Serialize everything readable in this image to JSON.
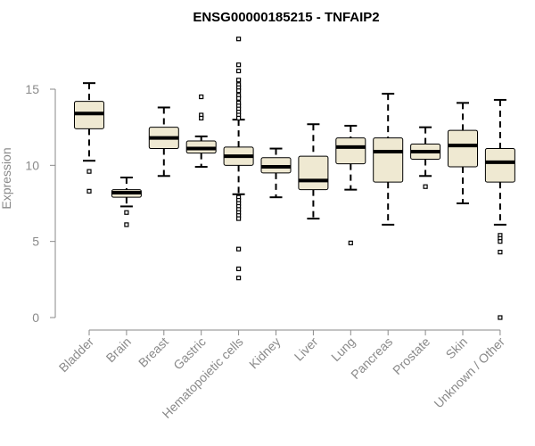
{
  "chart_data": {
    "type": "box",
    "title": "ENSG00000185215 - TNFAIP2",
    "xlabel": "",
    "ylabel": "Expression",
    "ylim": [
      0,
      18.3
    ],
    "yticks": [
      0,
      5,
      10,
      15
    ],
    "box_fill": "#efe9d2",
    "box_stroke": "#000000",
    "median_color": "#000000",
    "categories": [
      "Bladder",
      "Brain",
      "Breast",
      "Gastric",
      "Hematopoietic cells",
      "Kidney",
      "Liver",
      "Lung",
      "Pancreas",
      "Prostate",
      "Skin",
      "Unknown / Other"
    ],
    "boxes": [
      {
        "category": "Bladder",
        "whisker_low": 10.3,
        "q1": 12.4,
        "median": 13.4,
        "q3": 14.2,
        "whisker_high": 15.4,
        "outliers": [
          9.6,
          8.3
        ]
      },
      {
        "category": "Brain",
        "whisker_low": 7.3,
        "q1": 7.9,
        "median": 8.2,
        "q3": 8.4,
        "whisker_high": 9.2,
        "outliers": [
          6.9,
          6.1
        ]
      },
      {
        "category": "Breast",
        "whisker_low": 9.3,
        "q1": 11.1,
        "median": 11.8,
        "q3": 12.5,
        "whisker_high": 13.8,
        "outliers": []
      },
      {
        "category": "Gastric",
        "whisker_low": 9.9,
        "q1": 10.8,
        "median": 11.1,
        "q3": 11.6,
        "whisker_high": 11.9,
        "outliers": [
          14.5,
          13.3,
          13.1
        ]
      },
      {
        "category": "Hematopoietic cells",
        "whisker_low": 8.1,
        "q1": 10.0,
        "median": 10.6,
        "q3": 11.2,
        "whisker_high": 13.0,
        "outliers": [
          18.3,
          16.6,
          16.2,
          15.6,
          15.3,
          15.1,
          14.9,
          14.6,
          14.4,
          14.1,
          13.9,
          13.7,
          13.5,
          13.3,
          13.1,
          7.9,
          7.7,
          7.5,
          7.3,
          7.1,
          6.9,
          6.7,
          6.5,
          4.5,
          3.2,
          2.6
        ]
      },
      {
        "category": "Kidney",
        "whisker_low": 7.9,
        "q1": 9.5,
        "median": 9.9,
        "q3": 10.5,
        "whisker_high": 11.1,
        "outliers": []
      },
      {
        "category": "Liver",
        "whisker_low": 6.5,
        "q1": 8.4,
        "median": 9.0,
        "q3": 10.6,
        "whisker_high": 12.7,
        "outliers": []
      },
      {
        "category": "Lung",
        "whisker_low": 8.4,
        "q1": 10.1,
        "median": 11.2,
        "q3": 11.8,
        "whisker_high": 12.6,
        "outliers": [
          4.9
        ]
      },
      {
        "category": "Pancreas",
        "whisker_low": 6.1,
        "q1": 8.9,
        "median": 10.9,
        "q3": 11.8,
        "whisker_high": 14.7,
        "outliers": []
      },
      {
        "category": "Prostate",
        "whisker_low": 9.3,
        "q1": 10.4,
        "median": 10.9,
        "q3": 11.4,
        "whisker_high": 12.5,
        "outliers": [
          8.6
        ]
      },
      {
        "category": "Skin",
        "whisker_low": 7.5,
        "q1": 9.9,
        "median": 11.3,
        "q3": 12.3,
        "whisker_high": 14.1,
        "outliers": []
      },
      {
        "category": "Unknown / Other",
        "whisker_low": 6.1,
        "q1": 8.9,
        "median": 10.2,
        "q3": 11.1,
        "whisker_high": 14.3,
        "outliers": [
          5.4,
          5.2,
          5.0,
          4.3,
          0.0
        ]
      }
    ]
  }
}
